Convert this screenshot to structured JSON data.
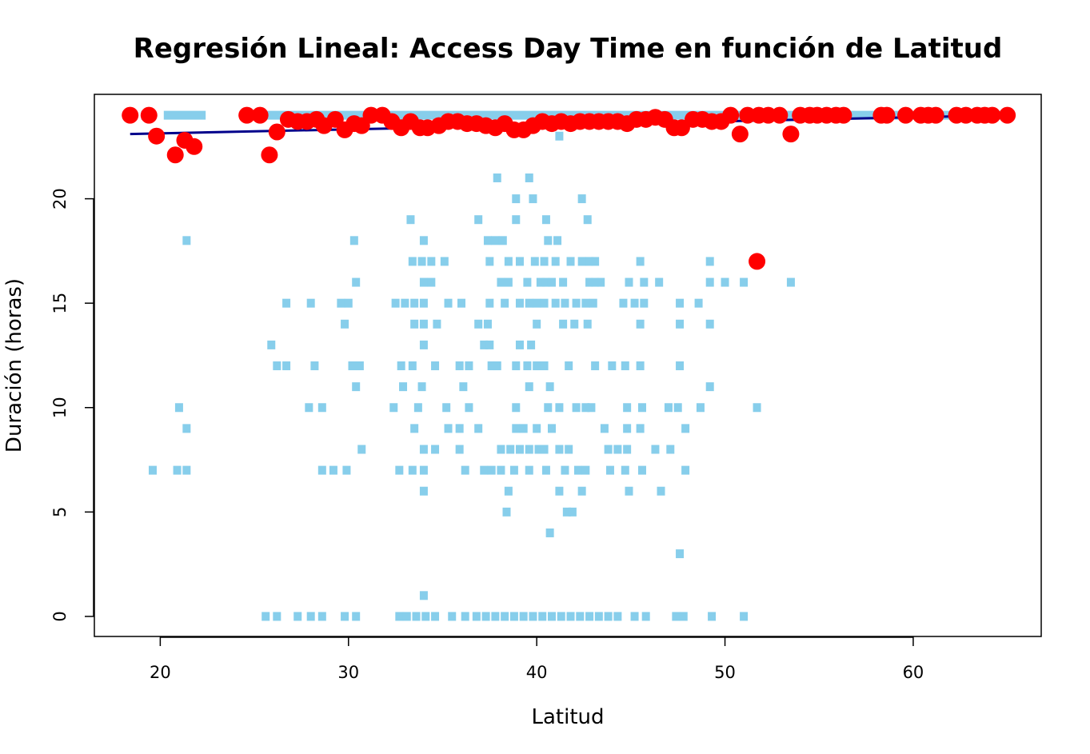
{
  "chart_data": {
    "type": "scatter",
    "title": "Regresión Lineal: Access Day Time en función de Latitud",
    "xlabel": "Latitud",
    "ylabel": "Duración (horas)",
    "xlim": [
      16.5,
      66.8
    ],
    "ylim": [
      -0.96,
      25.0
    ],
    "x_ticks": [
      20,
      30,
      40,
      50,
      60
    ],
    "y_ticks": [
      0,
      5,
      10,
      15,
      20
    ],
    "grid": false,
    "legend": "none",
    "colors": {
      "observed": "#87CEEB",
      "predicted": "#FF0000",
      "regression": "#00008B"
    },
    "regression_line": {
      "x": [
        18.4,
        65.0
      ],
      "y": [
        23.1,
        24.0
      ]
    },
    "series": [
      {
        "role": "observed",
        "marker": "square",
        "color": "#87CEEB",
        "bands": [
          {
            "y": 24,
            "segments": [
              [
                19.2,
                19.4
              ],
              [
                20.4,
                22.2
              ],
              [
                24.8,
                64.8
              ]
            ]
          },
          {
            "y": 23,
            "points": [
              41.2
            ]
          },
          {
            "y": 21,
            "points": [
              37.9,
              39.6
            ]
          },
          {
            "y": 20,
            "points": [
              38.9,
              39.8,
              42.4
            ]
          },
          {
            "y": 19,
            "points": [
              33.3,
              36.9,
              38.9,
              40.5,
              42.7
            ]
          },
          {
            "y": 18,
            "points": [
              21.4,
              30.3,
              34.0,
              37.4,
              37.8,
              38.2,
              40.6,
              41.1
            ]
          },
          {
            "y": 17,
            "points": [
              33.4,
              33.9,
              34.4,
              35.1,
              37.5,
              38.5,
              39.1,
              39.9,
              40.4,
              41.0,
              41.8,
              42.4,
              42.8,
              43.1,
              45.5,
              49.2
            ]
          },
          {
            "y": 16,
            "points": [
              30.4,
              34.0,
              34.4,
              38.1,
              38.5,
              39.5,
              40.2,
              40.5,
              40.8,
              41.4,
              42.8,
              43.1,
              43.4,
              44.9,
              45.7,
              46.5,
              49.2,
              50.0,
              51.0,
              53.5
            ]
          },
          {
            "y": 15,
            "points": [
              26.7,
              28.0,
              29.6,
              30.0,
              32.5,
              33.0,
              33.5,
              34.0,
              35.3,
              36.0,
              37.5,
              38.3,
              39.1,
              39.6,
              40.0,
              40.4,
              41.0,
              41.5,
              42.1,
              42.6,
              43.0,
              44.6,
              45.2,
              45.7,
              47.6,
              48.6
            ]
          },
          {
            "y": 14,
            "points": [
              29.8,
              33.5,
              34.0,
              34.7,
              36.9,
              37.4,
              40.0,
              41.4,
              42.0,
              42.7,
              45.5,
              47.6,
              49.2
            ]
          },
          {
            "y": 13,
            "points": [
              25.9,
              34.0,
              37.2,
              37.5,
              39.1,
              39.7
            ]
          },
          {
            "y": 12,
            "points": [
              26.2,
              26.7,
              28.2,
              30.2,
              30.6,
              32.8,
              33.4,
              34.6,
              35.9,
              36.4,
              37.6,
              37.9,
              38.9,
              39.5,
              40.0,
              40.4,
              41.7,
              43.1,
              44.0,
              44.7,
              45.5,
              47.6
            ]
          },
          {
            "y": 11,
            "points": [
              30.4,
              32.9,
              33.9,
              36.1,
              39.6,
              40.7,
              49.2
            ]
          },
          {
            "y": 10,
            "points": [
              21.0,
              27.9,
              28.6,
              32.4,
              33.7,
              35.2,
              36.4,
              38.9,
              40.6,
              41.2,
              42.1,
              42.6,
              42.9,
              44.8,
              45.6,
              47.0,
              47.5,
              48.7,
              51.7
            ]
          },
          {
            "y": 9,
            "points": [
              21.4,
              33.5,
              35.3,
              35.9,
              36.9,
              38.9,
              39.3,
              40.0,
              40.8,
              43.6,
              44.8,
              45.5,
              47.9
            ]
          },
          {
            "y": 8,
            "points": [
              30.7,
              34.0,
              34.6,
              35.9,
              38.1,
              38.6,
              39.1,
              39.6,
              40.1,
              40.4,
              41.2,
              41.7,
              43.8,
              44.3,
              44.8,
              46.3,
              47.1
            ]
          },
          {
            "y": 7,
            "points": [
              19.6,
              20.9,
              21.4,
              28.6,
              29.2,
              29.9,
              32.7,
              33.4,
              34.0,
              36.2,
              37.2,
              37.6,
              38.1,
              38.8,
              39.6,
              40.5,
              41.5,
              42.2,
              42.6,
              43.9,
              44.7,
              45.6,
              47.9
            ]
          },
          {
            "y": 6,
            "points": [
              34.0,
              38.5,
              41.2,
              42.4,
              44.9,
              46.6
            ]
          },
          {
            "y": 5,
            "points": [
              38.4,
              41.6,
              41.9
            ]
          },
          {
            "y": 4,
            "points": [
              40.7
            ]
          },
          {
            "y": 3,
            "points": [
              47.6
            ]
          },
          {
            "y": 1,
            "points": [
              34.0
            ]
          },
          {
            "y": 0,
            "points": [
              25.6,
              26.2,
              27.3,
              28.0,
              28.6,
              29.8,
              30.4,
              32.7,
              33.1,
              33.6,
              34.1,
              34.6,
              35.5,
              36.2,
              36.8,
              37.3,
              37.8,
              38.3,
              38.8,
              39.3,
              39.8,
              40.3,
              40.8,
              41.3,
              41.8,
              42.3,
              42.8,
              43.3,
              43.8,
              44.3,
              45.2,
              45.8,
              47.4,
              47.8,
              49.3,
              51.0
            ]
          }
        ]
      },
      {
        "role": "predicted",
        "marker": "circle",
        "color": "#FF0000",
        "x": [
          18.4,
          19.4,
          19.8,
          20.8,
          21.3,
          21.8,
          24.6,
          25.3,
          25.8,
          26.2,
          26.8,
          27.3,
          27.8,
          28.3,
          28.7,
          29.3,
          29.8,
          30.3,
          30.7,
          31.2,
          31.8,
          32.3,
          32.8,
          33.3,
          33.8,
          34.2,
          34.8,
          35.3,
          35.8,
          36.3,
          36.8,
          37.3,
          37.8,
          38.3,
          38.8,
          39.3,
          39.8,
          40.3,
          40.8,
          41.3,
          41.8,
          42.3,
          42.8,
          43.3,
          43.8,
          44.3,
          44.8,
          45.3,
          45.8,
          46.3,
          46.8,
          47.3,
          47.7,
          48.3,
          48.8,
          49.3,
          49.8,
          50.3,
          50.8,
          51.2,
          51.8,
          52.3,
          52.9,
          53.5,
          54.0,
          54.5,
          54.9,
          55.4,
          55.9,
          56.3,
          58.3,
          58.6,
          59.6,
          60.4,
          60.8,
          61.2,
          62.3,
          62.8,
          63.4,
          63.8,
          64.2,
          65.0
        ],
        "y": [
          24.0,
          24.0,
          23.0,
          22.1,
          22.8,
          22.5,
          24.0,
          24.0,
          22.1,
          23.2,
          23.8,
          23.7,
          23.7,
          23.8,
          23.5,
          23.8,
          23.3,
          23.6,
          23.5,
          24.0,
          24.0,
          23.7,
          23.4,
          23.7,
          23.4,
          23.4,
          23.5,
          23.7,
          23.7,
          23.6,
          23.6,
          23.5,
          23.4,
          23.6,
          23.3,
          23.3,
          23.5,
          23.7,
          23.6,
          23.7,
          23.6,
          23.7,
          23.7,
          23.7,
          23.7,
          23.7,
          23.6,
          23.8,
          23.8,
          23.9,
          23.8,
          23.4,
          23.4,
          23.8,
          23.8,
          23.7,
          23.7,
          24.0,
          23.1,
          24.0,
          24.0,
          24.0,
          24.0,
          23.1,
          24.0,
          24.0,
          24.0,
          24.0,
          24.0,
          24.0,
          24.0,
          24.0,
          24.0,
          24.0,
          24.0,
          24.0,
          24.0,
          24.0,
          24.0,
          24.0,
          24.0,
          24.0
        ],
        "extra_points": [
          {
            "x": 51.7,
            "y": 17.0
          }
        ]
      }
    ]
  }
}
